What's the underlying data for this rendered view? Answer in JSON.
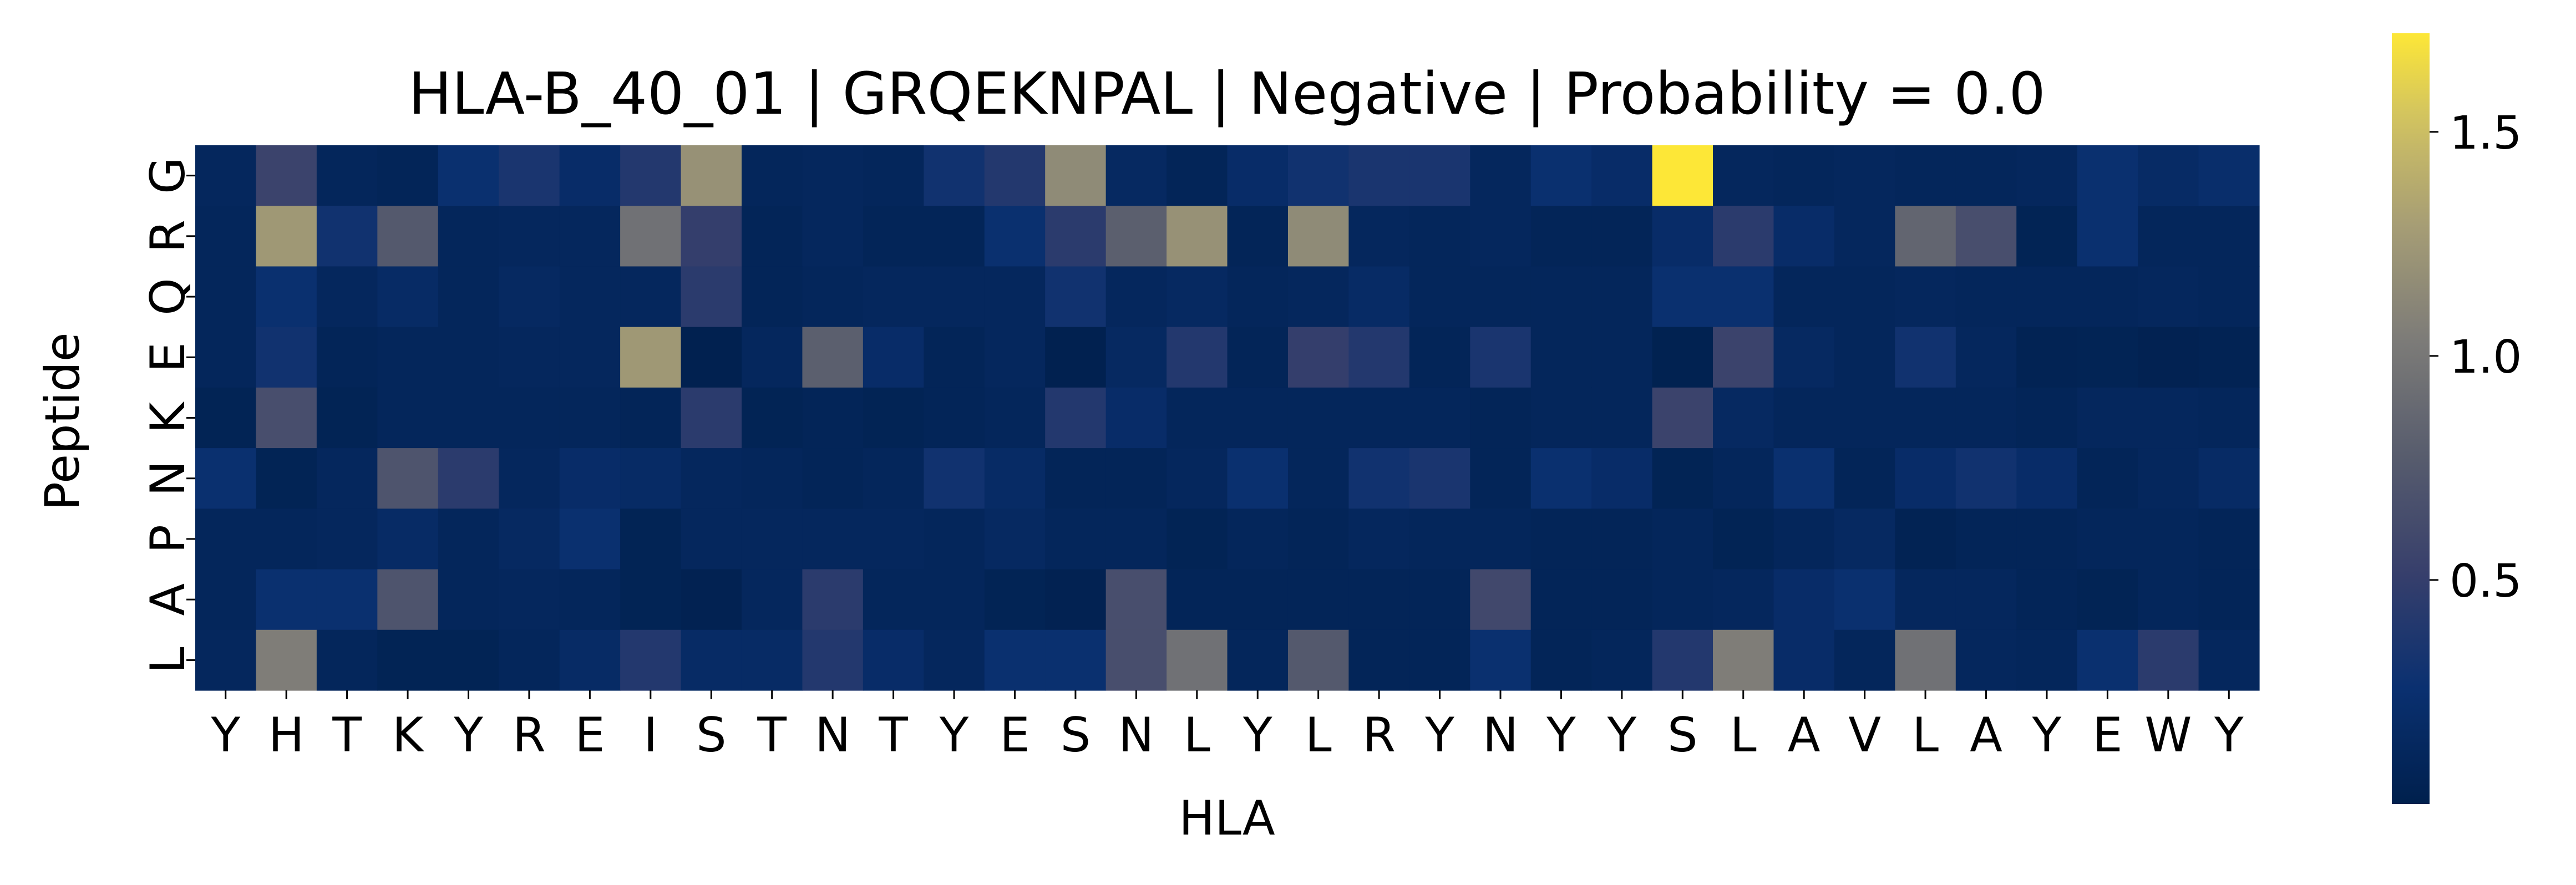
{
  "chart_data": {
    "type": "heatmap",
    "title": "HLA-B_40_01 | GRQEKNPAL | Negative | Probability = 0.0",
    "xlabel": "HLA",
    "ylabel": "Peptide",
    "x_categories": [
      "Y",
      "H",
      "T",
      "K",
      "Y",
      "R",
      "E",
      "I",
      "S",
      "T",
      "N",
      "T",
      "Y",
      "E",
      "S",
      "N",
      "L",
      "Y",
      "L",
      "R",
      "Y",
      "N",
      "Y",
      "Y",
      "S",
      "L",
      "A",
      "V",
      "L",
      "A",
      "Y",
      "E",
      "W",
      "Y"
    ],
    "y_categories": [
      "G",
      "R",
      "Q",
      "E",
      "K",
      "N",
      "P",
      "A",
      "L"
    ],
    "values": [
      [
        0.12,
        0.55,
        0.1,
        0.08,
        0.25,
        0.35,
        0.2,
        0.4,
        1.2,
        0.1,
        0.12,
        0.1,
        0.3,
        0.4,
        1.15,
        0.15,
        0.08,
        0.2,
        0.3,
        0.35,
        0.35,
        0.12,
        0.25,
        0.2,
        1.72,
        0.12,
        0.1,
        0.12,
        0.1,
        0.1,
        0.12,
        0.25,
        0.18,
        0.22
      ],
      [
        0.1,
        1.25,
        0.3,
        0.75,
        0.1,
        0.12,
        0.12,
        0.95,
        0.5,
        0.08,
        0.12,
        0.08,
        0.08,
        0.25,
        0.45,
        0.8,
        1.2,
        0.08,
        1.15,
        0.12,
        0.1,
        0.12,
        0.08,
        0.08,
        0.2,
        0.45,
        0.2,
        0.12,
        0.85,
        0.65,
        0.06,
        0.25,
        0.1,
        0.1
      ],
      [
        0.1,
        0.25,
        0.12,
        0.18,
        0.1,
        0.15,
        0.12,
        0.12,
        0.45,
        0.08,
        0.1,
        0.12,
        0.12,
        0.12,
        0.3,
        0.12,
        0.15,
        0.1,
        0.12,
        0.18,
        0.1,
        0.1,
        0.1,
        0.1,
        0.25,
        0.25,
        0.1,
        0.1,
        0.12,
        0.1,
        0.1,
        0.1,
        0.12,
        0.1
      ],
      [
        0.1,
        0.3,
        0.08,
        0.1,
        0.1,
        0.12,
        0.12,
        1.25,
        0.02,
        0.12,
        0.8,
        0.2,
        0.08,
        0.12,
        0.02,
        0.15,
        0.4,
        0.08,
        0.5,
        0.4,
        0.08,
        0.35,
        0.1,
        0.1,
        0.03,
        0.55,
        0.15,
        0.1,
        0.3,
        0.12,
        0.05,
        0.06,
        0.04,
        0.05
      ],
      [
        0.06,
        0.65,
        0.06,
        0.1,
        0.1,
        0.1,
        0.1,
        0.08,
        0.45,
        0.06,
        0.08,
        0.06,
        0.08,
        0.1,
        0.4,
        0.2,
        0.1,
        0.1,
        0.1,
        0.1,
        0.1,
        0.08,
        0.1,
        0.1,
        0.55,
        0.15,
        0.1,
        0.1,
        0.1,
        0.1,
        0.08,
        0.12,
        0.12,
        0.1
      ],
      [
        0.25,
        0.06,
        0.12,
        0.7,
        0.45,
        0.12,
        0.2,
        0.18,
        0.12,
        0.1,
        0.08,
        0.1,
        0.3,
        0.18,
        0.08,
        0.08,
        0.12,
        0.25,
        0.1,
        0.3,
        0.35,
        0.08,
        0.25,
        0.2,
        0.06,
        0.1,
        0.25,
        0.08,
        0.2,
        0.3,
        0.2,
        0.08,
        0.12,
        0.18
      ],
      [
        0.1,
        0.1,
        0.12,
        0.18,
        0.1,
        0.15,
        0.25,
        0.06,
        0.12,
        0.12,
        0.12,
        0.12,
        0.1,
        0.15,
        0.1,
        0.1,
        0.06,
        0.1,
        0.08,
        0.12,
        0.1,
        0.1,
        0.08,
        0.08,
        0.1,
        0.06,
        0.1,
        0.15,
        0.05,
        0.08,
        0.08,
        0.1,
        0.1,
        0.08
      ],
      [
        0.1,
        0.25,
        0.25,
        0.7,
        0.1,
        0.12,
        0.1,
        0.06,
        0.04,
        0.12,
        0.45,
        0.1,
        0.1,
        0.06,
        0.04,
        0.65,
        0.08,
        0.08,
        0.08,
        0.08,
        0.08,
        0.6,
        0.08,
        0.08,
        0.1,
        0.12,
        0.2,
        0.25,
        0.12,
        0.12,
        0.08,
        0.06,
        0.1,
        0.08
      ],
      [
        0.12,
        1.05,
        0.1,
        0.06,
        0.06,
        0.1,
        0.18,
        0.4,
        0.18,
        0.18,
        0.4,
        0.2,
        0.12,
        0.25,
        0.25,
        0.65,
        0.95,
        0.1,
        0.75,
        0.08,
        0.08,
        0.25,
        0.08,
        0.1,
        0.4,
        1.05,
        0.2,
        0.1,
        0.95,
        0.12,
        0.1,
        0.25,
        0.45,
        0.12
      ]
    ],
    "colorbar": {
      "colormap": "cividis",
      "vmin": 0.0,
      "vmax": 1.72,
      "ticks": [
        0.5,
        1.0,
        1.5
      ],
      "tick_labels": [
        "0.5",
        "1.0",
        "1.5"
      ]
    },
    "grid": false
  }
}
